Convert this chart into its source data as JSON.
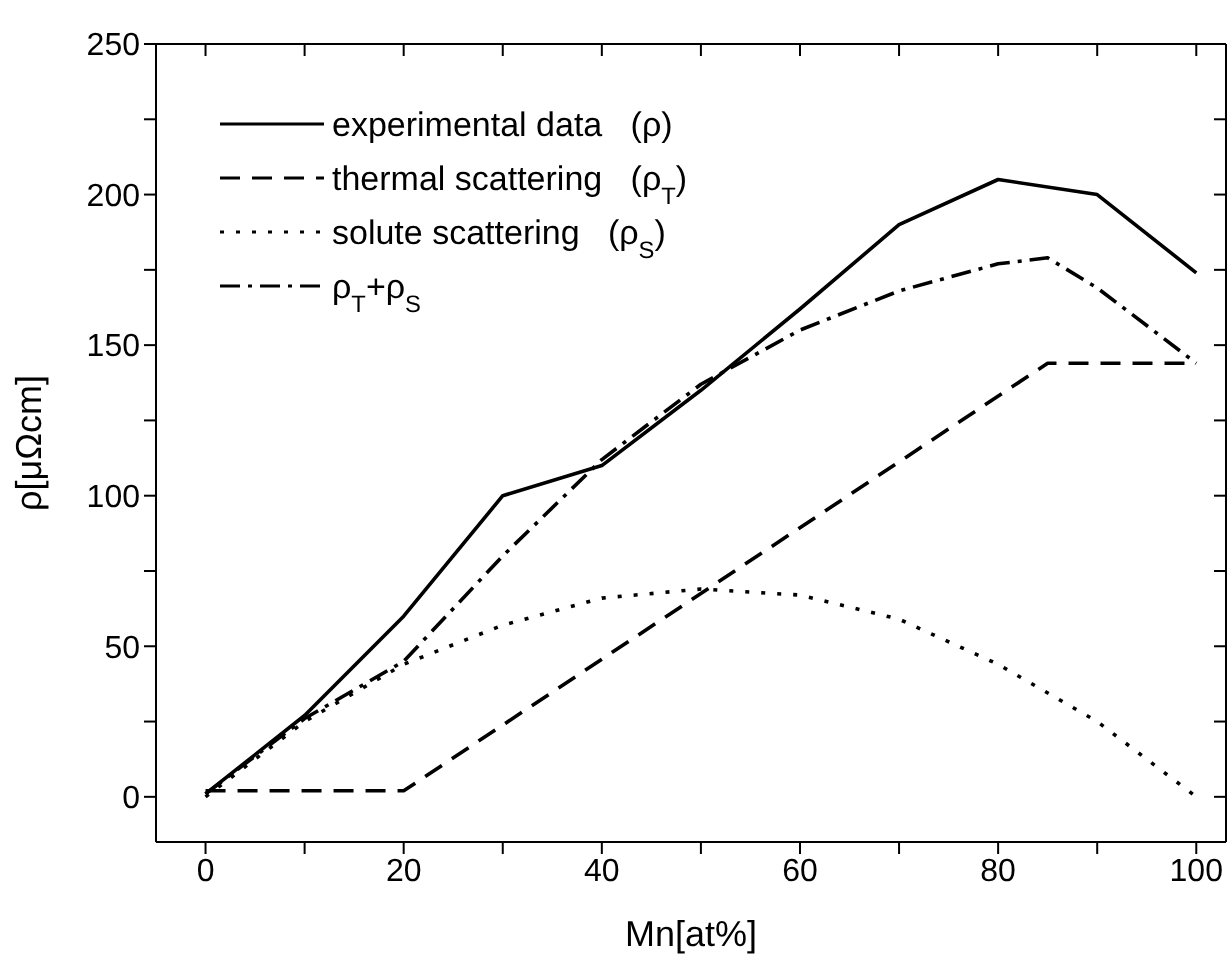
{
  "chart_data": {
    "type": "line",
    "xlabel": "Mn[at%]",
    "ylabel": "ρ[μΩcm]",
    "xlim": [
      -5,
      103
    ],
    "ylim": [
      -15,
      250
    ],
    "xticks": [
      0,
      {
        "value": 10,
        "label": null
      },
      20,
      {
        "value": 30,
        "label": null
      },
      40,
      {
        "value": 50,
        "label": null
      },
      60,
      {
        "value": 70,
        "label": null
      },
      80,
      {
        "value": 90,
        "label": null
      },
      100
    ],
    "yticks": [
      0,
      {
        "value": 25,
        "label": null
      },
      50,
      {
        "value": 75,
        "label": null
      },
      100,
      {
        "value": 125,
        "label": null
      },
      150,
      {
        "value": 175,
        "label": null
      },
      200,
      {
        "value": 225,
        "label": null
      },
      250
    ],
    "grid": false,
    "legend": "top left",
    "marker": "none",
    "series": [
      {
        "name": "experimental data   (ρ)",
        "color": "#000000",
        "line_style": "solid",
        "x": [
          0,
          10,
          20,
          30,
          40,
          50,
          60,
          70,
          80,
          90,
          100
        ],
        "values": [
          1,
          27,
          60,
          100,
          110,
          135,
          162,
          190,
          205,
          200,
          174
        ]
      },
      {
        "name": "thermal scattering   (ρ$_{T}$)",
        "color": "#000000",
        "line_style": "dashed",
        "x": [
          0,
          20,
          85,
          100
        ],
        "values": [
          2,
          2,
          144,
          144
        ]
      },
      {
        "name": "solute scattering   (ρ$_{S}$)",
        "color": "#000000",
        "line_style": "dotted",
        "x": [
          0,
          10,
          20,
          30,
          40,
          50,
          60,
          70,
          80,
          90,
          100
        ],
        "values": [
          0,
          25,
          44,
          57,
          66,
          69,
          67,
          59,
          44,
          25,
          0
        ]
      },
      {
        "name": "ρ$_{T}$+ρ$_{S}$",
        "color": "#000000",
        "line_style": "dashdot",
        "x": [
          0,
          10,
          20,
          30,
          40,
          50,
          60,
          70,
          80,
          85,
          90,
          100
        ],
        "values": [
          1,
          26,
          45,
          80,
          112,
          137,
          155,
          168,
          177,
          179,
          169,
          144
        ]
      }
    ]
  }
}
